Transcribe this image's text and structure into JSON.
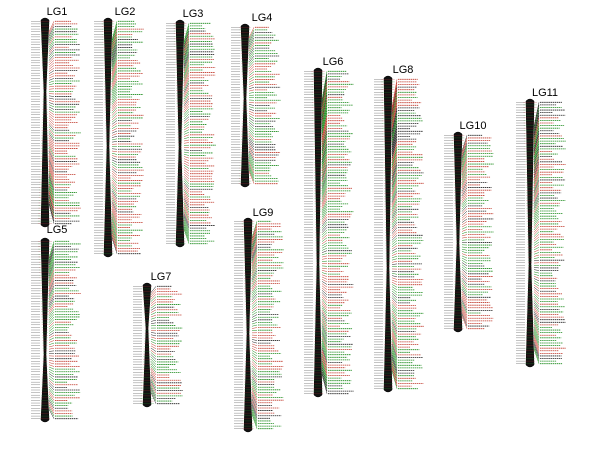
{
  "linkage_groups": [
    {
      "label": "LG1"
    },
    {
      "label": "LG2"
    },
    {
      "label": "LG3"
    },
    {
      "label": "LG4"
    },
    {
      "label": "LG5"
    },
    {
      "label": "LG6"
    },
    {
      "label": "LG7"
    },
    {
      "label": "LG8"
    },
    {
      "label": "LG9"
    },
    {
      "label": "LG10"
    },
    {
      "label": "LG11"
    }
  ]
}
